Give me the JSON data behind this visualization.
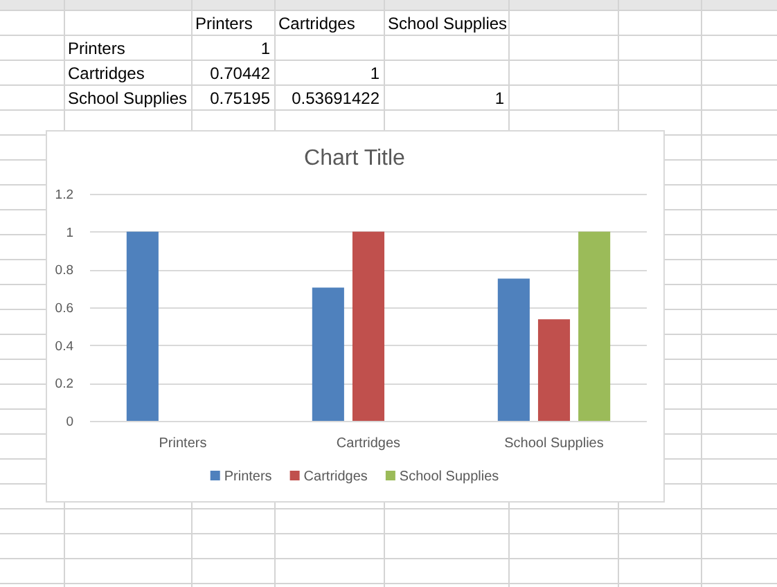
{
  "chart_data": {
    "type": "bar",
    "title": "Chart Title",
    "categories": [
      "Printers",
      "Cartridges",
      "School Supplies"
    ],
    "series": [
      {
        "name": "Printers",
        "color": "#4f81bd",
        "values": [
          1,
          0.70442,
          0.75195
        ]
      },
      {
        "name": "Cartridges",
        "color": "#c0504d",
        "values": [
          null,
          1,
          0.53691422
        ]
      },
      {
        "name": "School Supplies",
        "color": "#9bbb59",
        "values": [
          null,
          null,
          1
        ]
      }
    ],
    "ylim": [
      0,
      1.2
    ],
    "yticks": [
      0,
      0.2,
      0.4,
      0.6,
      0.8,
      1,
      1.2
    ],
    "grid": "y",
    "legend": "bottom",
    "annotations": [
      "1",
      "0.70442",
      "1",
      "0.75195",
      "0.53691422",
      "1"
    ]
  }
}
